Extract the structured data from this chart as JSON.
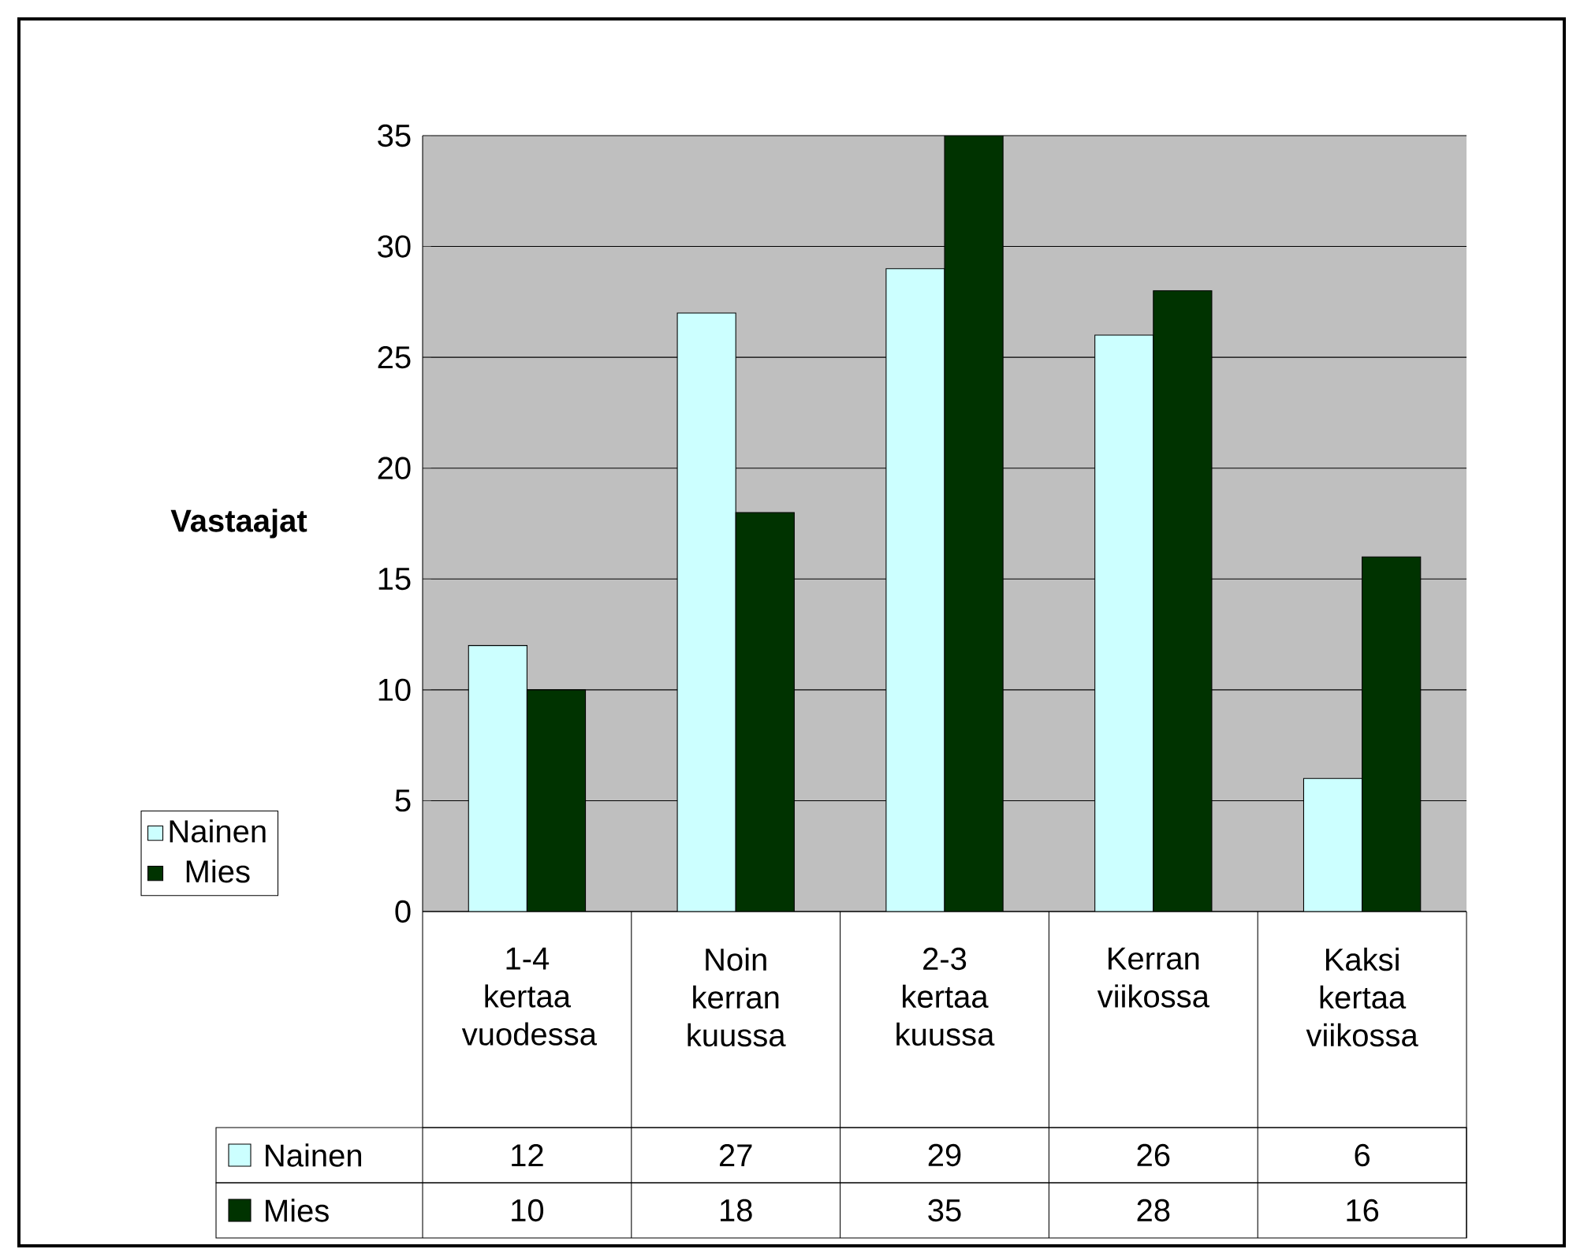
{
  "chart_data": {
    "type": "bar",
    "ylabel": "Vastaajat",
    "categories": [
      "1-4 kertaa vuodessa",
      "Noin kerran kuussa",
      "2-3 kertaa kuussa",
      "Kerran viikossa",
      "Kaksi kertaa viikossa"
    ],
    "series": [
      {
        "name": "Nainen",
        "color": "#ccffff",
        "values": [
          12,
          27,
          29,
          26,
          6
        ]
      },
      {
        "name": "Mies",
        "color": "#003300",
        "values": [
          10,
          18,
          35,
          28,
          16
        ]
      }
    ],
    "ylim": [
      0,
      35
    ],
    "yticks": [
      0,
      5,
      10,
      15,
      20,
      25,
      30,
      35
    ],
    "grid": "y",
    "legend": "left",
    "data_labels": true
  }
}
